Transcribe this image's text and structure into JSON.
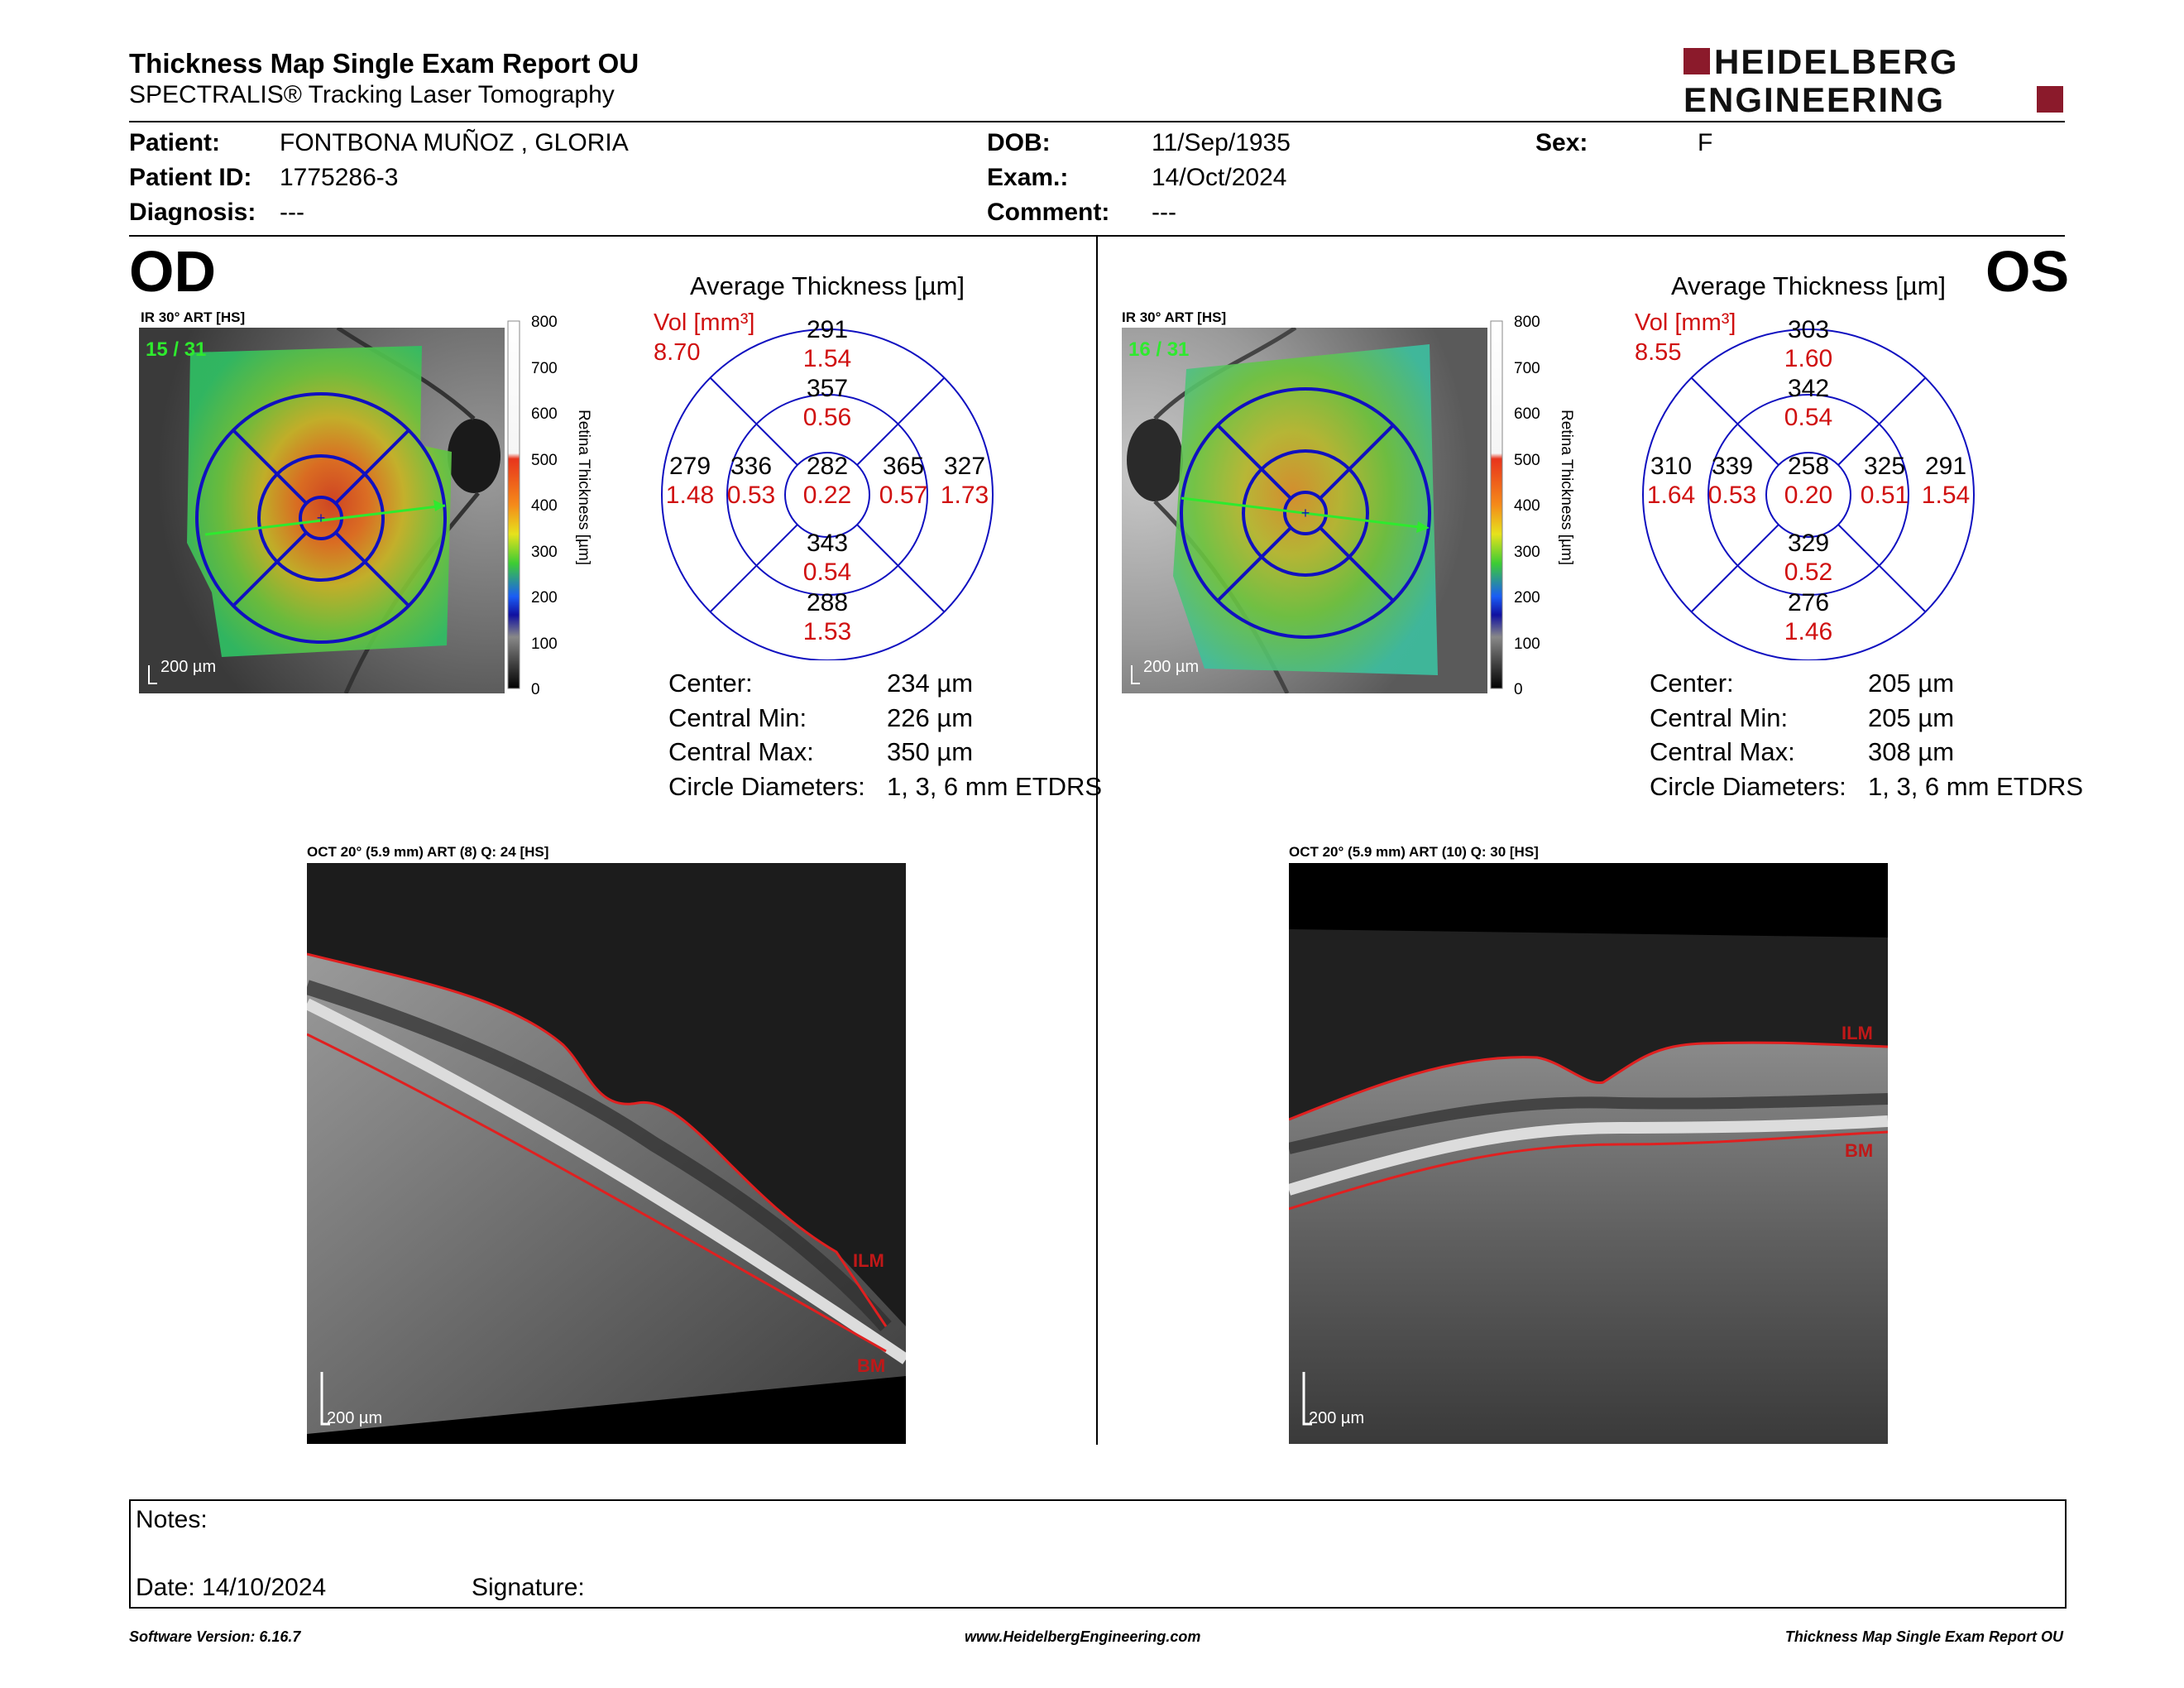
{
  "report": {
    "title": "Thickness Map Single Exam Report OU",
    "subtitle": "SPECTRALIS® Tracking Laser Tomography",
    "brand_line1": "HEIDELBERG",
    "brand_line2": "ENGINEERING",
    "brand_color": "#8b1a2b"
  },
  "patient": {
    "patient_label": "Patient:",
    "patient_value": "FONTBONA MUÑOZ , GLORIA",
    "id_label": "Patient ID:",
    "id_value": "1775286-3",
    "diagnosis_label": "Diagnosis:",
    "diagnosis_value": "---",
    "dob_label": "DOB:",
    "dob_value": "11/Sep/1935",
    "exam_label": "Exam.:",
    "exam_value": "14/Oct/2024",
    "comment_label": "Comment:",
    "comment_value": "---",
    "sex_label": "Sex:",
    "sex_value": "F"
  },
  "od": {
    "eye": "OD",
    "ir_label": "IR 30° ART [HS]",
    "frame_count": "15 / 31",
    "scale_bar": "200 µm",
    "avg_title": "Average Thickness [µm]",
    "vol_label": "Vol [mm³]",
    "vol_value": "8.70",
    "sectors": {
      "outer_top": [
        "291",
        "1.54"
      ],
      "inner_top": [
        "357",
        "0.56"
      ],
      "outer_left": [
        "279",
        "1.48"
      ],
      "inner_left": [
        "336",
        "0.53"
      ],
      "center": [
        "282",
        "0.22"
      ],
      "inner_right": [
        "365",
        "0.57"
      ],
      "outer_right": [
        "327",
        "1.73"
      ],
      "inner_bottom": [
        "343",
        "0.54"
      ],
      "outer_bottom": [
        "288",
        "1.53"
      ]
    },
    "stats": {
      "center_label": "Center:",
      "center_value": "234 µm",
      "min_label": "Central Min:",
      "min_value": "226 µm",
      "max_label": "Central Max:",
      "max_value": "350 µm",
      "diam_label": "Circle Diameters:",
      "diam_value": "1, 3, 6 mm ETDRS"
    },
    "oct_label": "OCT 20° (5.9 mm) ART (8) Q: 24 [HS]",
    "oct_scale": "200 µm",
    "ilm": "ILM",
    "bm": "BM"
  },
  "os": {
    "eye": "OS",
    "ir_label": "IR 30° ART [HS]",
    "frame_count": "16 / 31",
    "scale_bar": "200 µm",
    "avg_title": "Average Thickness [µm]",
    "vol_label": "Vol [mm³]",
    "vol_value": "8.55",
    "sectors": {
      "outer_top": [
        "303",
        "1.60"
      ],
      "inner_top": [
        "342",
        "0.54"
      ],
      "outer_left": [
        "310",
        "1.64"
      ],
      "inner_left": [
        "339",
        "0.53"
      ],
      "center": [
        "258",
        "0.20"
      ],
      "inner_right": [
        "325",
        "0.51"
      ],
      "outer_right": [
        "291",
        "1.54"
      ],
      "inner_bottom": [
        "329",
        "0.52"
      ],
      "outer_bottom": [
        "276",
        "1.46"
      ]
    },
    "stats": {
      "center_label": "Center:",
      "center_value": "205 µm",
      "min_label": "Central Min:",
      "min_value": "205 µm",
      "max_label": "Central Max:",
      "max_value": "308 µm",
      "diam_label": "Circle Diameters:",
      "diam_value": "1, 3, 6 mm ETDRS"
    },
    "oct_label": "OCT 20° (5.9 mm) ART (10) Q: 30 [HS]",
    "oct_scale": "200 µm",
    "ilm": "ILM",
    "bm": "BM"
  },
  "colorbar": {
    "ticks": [
      "800",
      "700",
      "600",
      "500",
      "400",
      "300",
      "200",
      "100",
      "0"
    ],
    "title": "Retina Thickness [µm]"
  },
  "notes": {
    "notes_label": "Notes:",
    "date_label": "Date: 14/10/2024",
    "signature_label": "Signature:"
  },
  "footer": {
    "software": "Software Version: 6.16.7",
    "website": "www.HeidelbergEngineering.com",
    "report_name": "Thickness Map Single Exam Report OU"
  }
}
